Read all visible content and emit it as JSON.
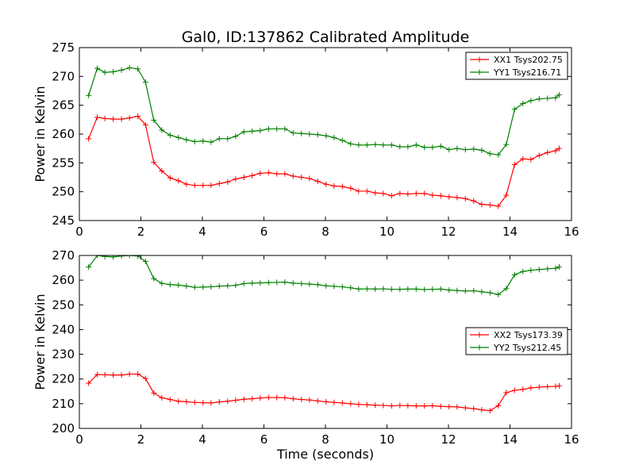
{
  "chart_data": [
    {
      "type": "line",
      "title": "Gal0, ID:137862 Calibrated Amplitude",
      "xlabel": "",
      "ylabel": "Power in Kelvin",
      "xlim": [
        0,
        16
      ],
      "ylim": [
        245,
        275
      ],
      "xticks": [
        0,
        2,
        4,
        6,
        8,
        10,
        12,
        14,
        16
      ],
      "yticks": [
        245,
        250,
        255,
        260,
        265,
        270,
        275
      ],
      "legend_position": "top-right",
      "x": [
        0.3,
        0.58,
        0.83,
        1.1,
        1.37,
        1.63,
        1.9,
        2.15,
        2.42,
        2.68,
        2.95,
        3.22,
        3.48,
        3.75,
        4.02,
        4.28,
        4.55,
        4.82,
        5.08,
        5.35,
        5.62,
        5.88,
        6.15,
        6.42,
        6.68,
        6.95,
        7.22,
        7.48,
        7.75,
        8.02,
        8.28,
        8.55,
        8.82,
        9.08,
        9.35,
        9.62,
        9.88,
        10.15,
        10.42,
        10.68,
        10.95,
        11.22,
        11.48,
        11.75,
        12.02,
        12.28,
        12.55,
        12.82,
        13.08,
        13.35,
        13.62,
        13.88,
        14.15,
        14.42,
        14.68,
        14.95,
        15.22,
        15.48,
        15.6
      ],
      "series": [
        {
          "name": "XX1 Tsys202.75",
          "color": "#ff0000",
          "values": [
            259.2,
            262.9,
            262.7,
            262.6,
            262.6,
            262.8,
            263.1,
            261.6,
            255.1,
            253.6,
            252.4,
            251.9,
            251.3,
            251.1,
            251.1,
            251.1,
            251.4,
            251.7,
            252.2,
            252.5,
            252.8,
            253.2,
            253.3,
            253.1,
            253.1,
            252.7,
            252.5,
            252.3,
            251.8,
            251.3,
            251.0,
            250.9,
            250.6,
            250.1,
            250.1,
            249.8,
            249.7,
            249.3,
            249.7,
            249.6,
            249.7,
            249.7,
            249.4,
            249.3,
            249.1,
            249.0,
            248.8,
            248.4,
            247.8,
            247.7,
            247.5,
            249.4,
            254.7,
            255.7,
            255.6,
            256.3,
            256.8,
            257.1,
            257.5
          ]
        },
        {
          "name": "YY1 Tsys216.71",
          "color": "#008000",
          "values": [
            266.7,
            271.4,
            270.7,
            270.8,
            271.1,
            271.5,
            271.3,
            269.0,
            262.4,
            260.7,
            259.8,
            259.4,
            259.0,
            258.7,
            258.8,
            258.6,
            259.2,
            259.2,
            259.6,
            260.4,
            260.5,
            260.6,
            260.9,
            260.9,
            260.9,
            260.2,
            260.1,
            260.0,
            259.9,
            259.7,
            259.4,
            258.9,
            258.3,
            258.1,
            258.1,
            258.2,
            258.1,
            258.1,
            257.8,
            257.8,
            258.1,
            257.7,
            257.7,
            257.9,
            257.3,
            257.5,
            257.3,
            257.4,
            257.2,
            256.6,
            256.4,
            258.2,
            264.3,
            265.3,
            265.8,
            266.1,
            266.2,
            266.3,
            266.8
          ]
        }
      ]
    },
    {
      "type": "line",
      "title": "",
      "xlabel": "Time (seconds)",
      "ylabel": "Power in Kelvin",
      "xlim": [
        0,
        16
      ],
      "ylim": [
        200,
        270
      ],
      "xticks": [
        0,
        2,
        4,
        6,
        8,
        10,
        12,
        14,
        16
      ],
      "yticks": [
        200,
        210,
        220,
        230,
        240,
        250,
        260,
        270
      ],
      "legend_position": "center-right",
      "x": [
        0.3,
        0.58,
        0.83,
        1.1,
        1.37,
        1.63,
        1.9,
        2.15,
        2.42,
        2.68,
        2.95,
        3.22,
        3.48,
        3.75,
        4.02,
        4.28,
        4.55,
        4.82,
        5.08,
        5.35,
        5.62,
        5.88,
        6.15,
        6.42,
        6.68,
        6.95,
        7.22,
        7.48,
        7.75,
        8.02,
        8.28,
        8.55,
        8.82,
        9.08,
        9.35,
        9.62,
        9.88,
        10.15,
        10.42,
        10.68,
        10.95,
        11.22,
        11.48,
        11.75,
        12.02,
        12.28,
        12.55,
        12.82,
        13.08,
        13.35,
        13.62,
        13.88,
        14.15,
        14.42,
        14.68,
        14.95,
        15.22,
        15.48,
        15.6
      ],
      "series": [
        {
          "name": "XX2 Tsys173.39",
          "color": "#ff0000",
          "values": [
            218.3,
            221.8,
            221.7,
            221.6,
            221.6,
            222.0,
            222.0,
            220.2,
            214.3,
            212.4,
            211.7,
            211.0,
            210.8,
            210.5,
            210.4,
            210.3,
            210.7,
            211.0,
            211.4,
            211.8,
            212.0,
            212.3,
            212.5,
            212.5,
            212.4,
            212.0,
            211.7,
            211.5,
            211.1,
            210.8,
            210.5,
            210.3,
            210.0,
            209.7,
            209.6,
            209.4,
            209.3,
            209.1,
            209.3,
            209.2,
            209.1,
            209.1,
            209.2,
            208.9,
            208.8,
            208.7,
            208.3,
            208.0,
            207.5,
            207.2,
            209.2,
            214.5,
            215.4,
            215.8,
            216.4,
            216.7,
            216.9,
            217.0,
            217.2
          ]
        },
        {
          "name": "YY2 Tsys212.45",
          "color": "#008000",
          "values": [
            265.3,
            270.0,
            269.6,
            269.4,
            269.8,
            270.0,
            269.8,
            267.6,
            260.6,
            258.7,
            258.2,
            258.0,
            257.6,
            257.1,
            257.2,
            257.3,
            257.6,
            257.7,
            257.9,
            258.6,
            258.8,
            258.9,
            259.0,
            259.1,
            259.2,
            258.8,
            258.6,
            258.4,
            258.2,
            257.7,
            257.5,
            257.3,
            256.9,
            256.4,
            256.5,
            256.4,
            256.5,
            256.3,
            256.3,
            256.4,
            256.4,
            256.2,
            256.3,
            256.4,
            256.0,
            255.8,
            255.6,
            255.7,
            255.3,
            254.9,
            254.2,
            256.6,
            262.2,
            263.5,
            264.0,
            264.3,
            264.6,
            264.8,
            265.4
          ]
        }
      ]
    }
  ]
}
